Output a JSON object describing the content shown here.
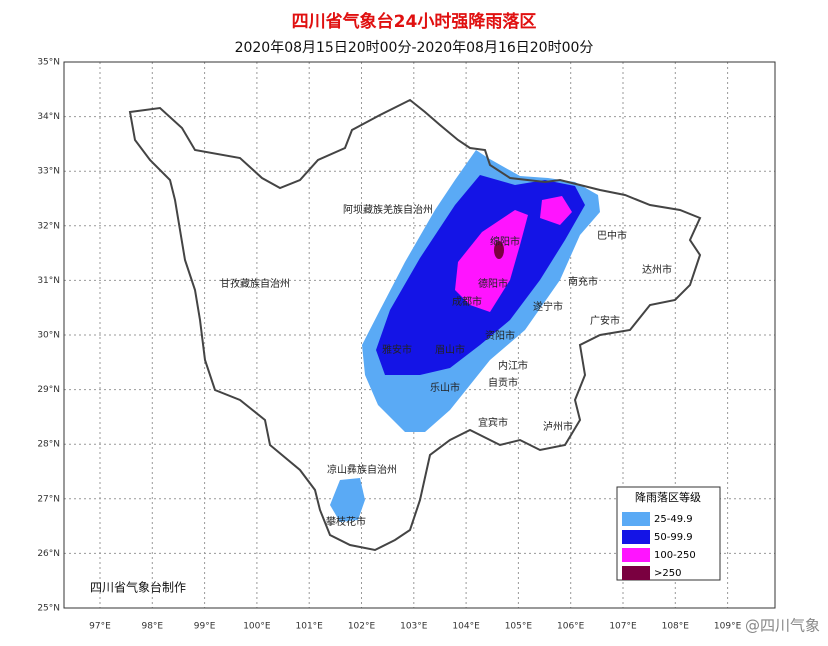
{
  "header": {
    "title": "四川省气象台24小时强降雨落区",
    "subtitle": "2020年08月15日20时00分-2020年08月16日20时00分"
  },
  "lat_labels": [
    "35°N",
    "34°N",
    "33°N",
    "32°N",
    "31°N",
    "30°N",
    "29°N",
    "28°N",
    "27°N",
    "26°N",
    "25°N"
  ],
  "lon_labels": [
    "97°E",
    "98°E",
    "99°E",
    "100°E",
    "101°E",
    "102°E",
    "103°E",
    "104°E",
    "105°E",
    "106°E",
    "107°E",
    "108°E",
    "109°E"
  ],
  "cities": [
    "阿坝藏族羌族自治州",
    "甘孜藏族自治州",
    "巴中市",
    "达州市",
    "绵阳市",
    "南充市",
    "德阳市",
    "成都市",
    "遂宁市",
    "广安市",
    "资阳市",
    "雅安市",
    "眉山市",
    "内江市",
    "乐山市",
    "自贡市",
    "宜宾市",
    "泸州市",
    "凉山彝族自治州",
    "攀枝花市"
  ],
  "legend": {
    "title": "降雨落区等级",
    "items": [
      {
        "label": "25-49.9",
        "color": "#5aaaf5"
      },
      {
        "label": "50-99.9",
        "color": "#1414e6"
      },
      {
        "label": "100-250",
        "color": "#ff14ff"
      },
      {
        "label": ">250",
        "color": "#7a0040"
      }
    ]
  },
  "credit": "四川省气象台制作",
  "watermark": "@四川气象"
}
